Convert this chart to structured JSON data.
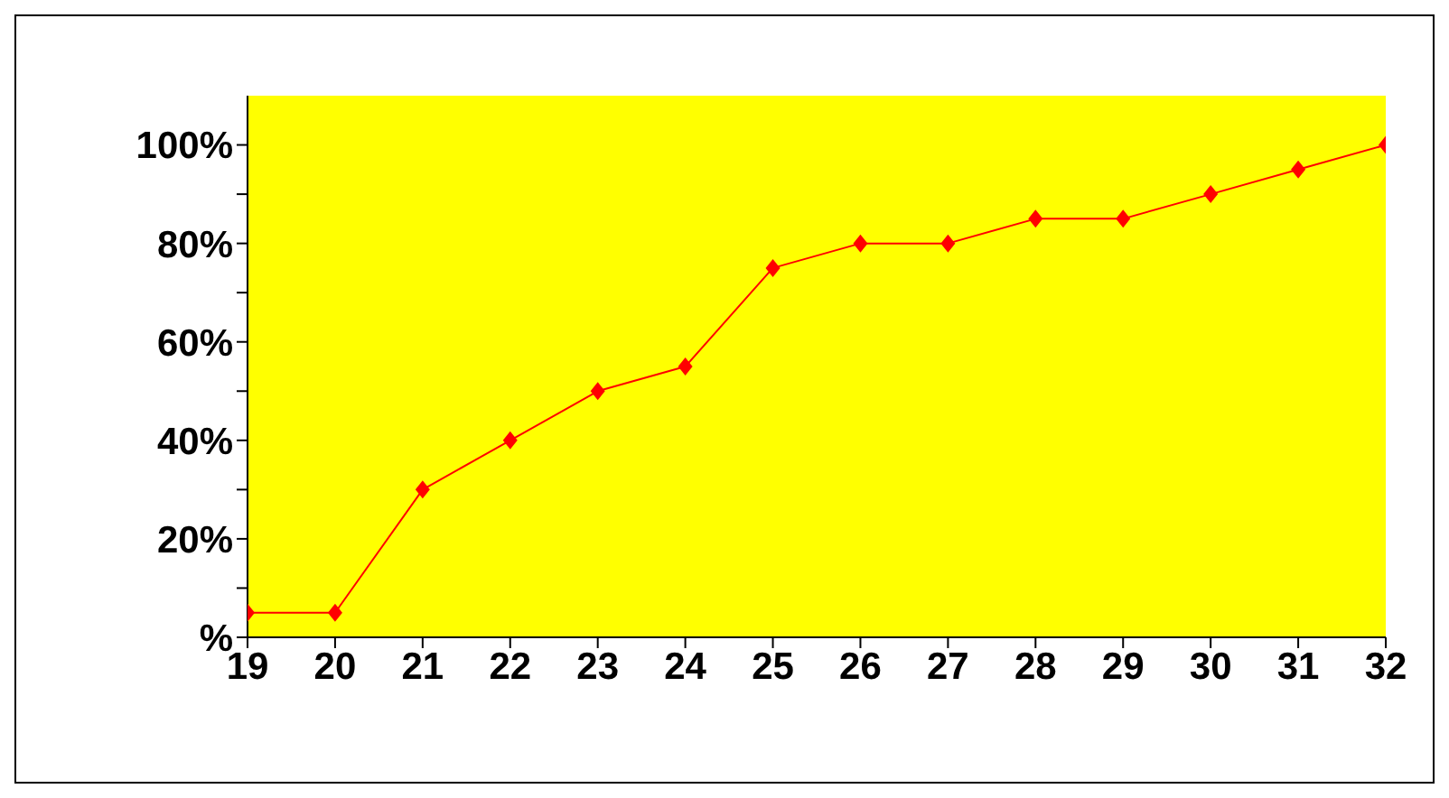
{
  "chart_data": {
    "type": "line",
    "x": [
      19,
      20,
      21,
      22,
      23,
      24,
      25,
      26,
      27,
      28,
      29,
      30,
      31,
      32
    ],
    "series": [
      {
        "color": "#ff0000",
        "values": [
          5,
          5,
          30,
          40,
          50,
          55,
          75,
          80,
          80,
          85,
          85,
          90,
          95,
          100
        ]
      }
    ],
    "xlim": [
      19,
      32
    ],
    "xticks": [
      19,
      20,
      21,
      22,
      23,
      24,
      25,
      26,
      27,
      28,
      29,
      30,
      31,
      32
    ],
    "ylim": [
      0,
      110
    ],
    "yticks": [
      {
        "value": 0,
        "label": "%"
      },
      {
        "value": 10,
        "label": null
      },
      {
        "value": 20,
        "label": "20%"
      },
      {
        "value": 30,
        "label": null
      },
      {
        "value": 40,
        "label": "40%"
      },
      {
        "value": 50,
        "label": null
      },
      {
        "value": 60,
        "label": "60%"
      },
      {
        "value": 70,
        "label": null
      },
      {
        "value": 80,
        "label": "80%"
      },
      {
        "value": 90,
        "label": null
      },
      {
        "value": 100,
        "label": "100%"
      }
    ],
    "grid": false,
    "legend": false,
    "marker": "diamond",
    "line_style": "solid"
  }
}
